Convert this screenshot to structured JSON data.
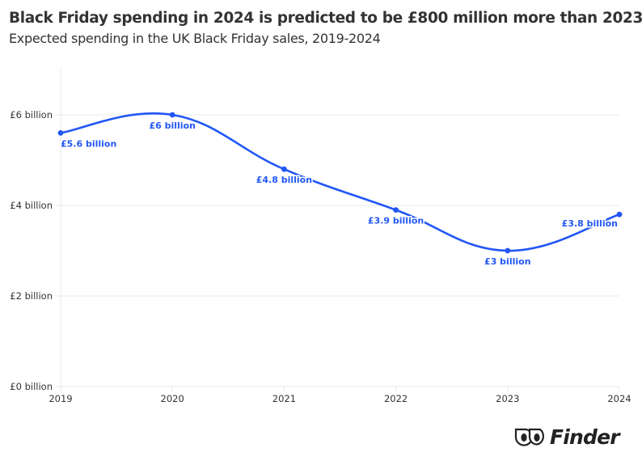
{
  "header": {
    "title": "Black Friday spending in 2024 is predicted to be £800 million more than 2023",
    "subtitle": "Expected spending in the UK Black Friday sales, 2019-2024"
  },
  "brand": {
    "logo_text": "Finder",
    "logo_icon": "finder-eyes-icon"
  },
  "colors": {
    "series": "#2257F5",
    "grid": "#e8e8e8",
    "text": "#333333"
  },
  "chart_data": {
    "type": "line",
    "title": "Black Friday spending in 2024 is predicted to be £800 million more than 2023",
    "subtitle": "Expected spending in the UK Black Friday sales, 2019-2024",
    "xlabel": "",
    "ylabel": "",
    "x": [
      2019,
      2020,
      2021,
      2022,
      2023,
      2024
    ],
    "x_tick_labels": [
      "2019",
      "2020",
      "2021",
      "2022",
      "2023",
      "2024"
    ],
    "series": [
      {
        "name": "Expected spending (£ billion)",
        "values": [
          5.6,
          6,
          4.8,
          3.9,
          3,
          3.8
        ],
        "data_labels": [
          "£5.6 billion",
          "£6 billion",
          "£4.8 billion",
          "£3.9 billion",
          "£3 billion",
          "£3.8 billion"
        ],
        "smooth": true,
        "markers": true
      }
    ],
    "y_ticks": [
      0,
      2,
      4,
      6
    ],
    "y_tick_labels": [
      "£0 billion",
      "£2 billion",
      "£4 billion",
      "£6 billion"
    ],
    "ylim": [
      0,
      7
    ],
    "xlim": [
      2019,
      2024
    ],
    "grid": "horizontal",
    "legend": "none"
  }
}
